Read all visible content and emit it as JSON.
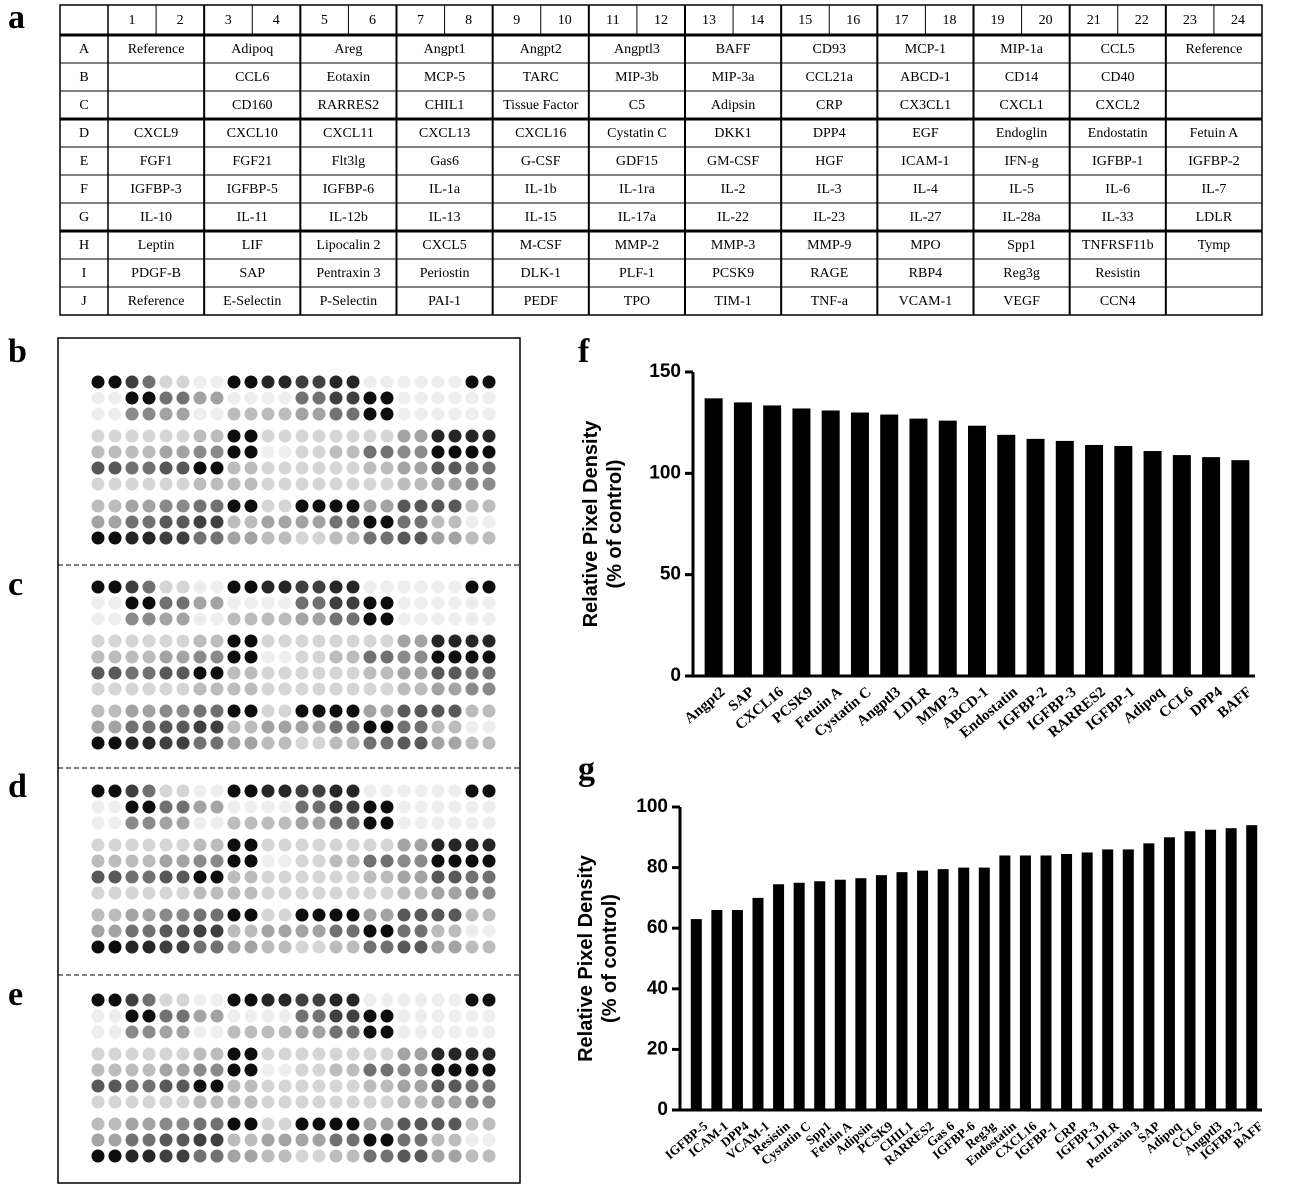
{
  "panel_labels": [
    "a",
    "b",
    "c",
    "d",
    "e",
    "f",
    "g"
  ],
  "table": {
    "columns": [
      1,
      2,
      3,
      4,
      5,
      6,
      7,
      8,
      9,
      10,
      11,
      12,
      13,
      14,
      15,
      16,
      17,
      18,
      19,
      20,
      21,
      22,
      23,
      24
    ],
    "row_labels": [
      "A",
      "B",
      "C",
      "D",
      "E",
      "F",
      "G",
      "H",
      "I",
      "J"
    ],
    "rows": [
      [
        "Reference",
        "Adipoq",
        "Areg",
        "Angpt1",
        "Angpt2",
        "Angptl3",
        "BAFF",
        "CD93",
        "MCP-1",
        "MIP-1a",
        "CCL5",
        "Reference"
      ],
      [
        null,
        "CCL6",
        "Eotaxin",
        "MCP-5",
        "TARC",
        "MIP-3b",
        "MIP-3a",
        "CCL21a",
        "ABCD-1",
        "CD14",
        "CD40",
        null
      ],
      [
        null,
        "CD160",
        "RARRES2",
        "CHIL1",
        "Tissue Factor",
        "C5",
        "Adipsin",
        "CRP",
        "CX3CL1",
        "CXCL1",
        "CXCL2",
        null
      ],
      [
        "CXCL9",
        "CXCL10",
        "CXCL11",
        "CXCL13",
        "CXCL16",
        "Cystatin C",
        "DKK1",
        "DPP4",
        "EGF",
        "Endoglin",
        "Endostatin",
        "Fetuin A"
      ],
      [
        "FGF1",
        "FGF21",
        "Flt3lg",
        "Gas6",
        "G-CSF",
        "GDF15",
        "GM-CSF",
        "HGF",
        "ICAM-1",
        "IFN-g",
        "IGFBP-1",
        "IGFBP-2"
      ],
      [
        "IGFBP-3",
        "IGFBP-5",
        "IGFBP-6",
        "IL-1a",
        "IL-1b",
        "IL-1ra",
        "IL-2",
        "IL-3",
        "IL-4",
        "IL-5",
        "IL-6",
        "IL-7"
      ],
      [
        "IL-10",
        "IL-11",
        "IL-12b",
        "IL-13",
        "IL-15",
        "IL-17a",
        "IL-22",
        "IL-23",
        "IL-27",
        "IL-28a",
        "IL-33",
        "LDLR"
      ],
      [
        "Leptin",
        "LIF",
        "Lipocalin 2",
        "CXCL5",
        "M-CSF",
        "MMP-2",
        "MMP-3",
        "MMP-9",
        "MPO",
        "Spp1",
        "TNFRSF11b",
        "Tymp"
      ],
      [
        "PDGF-B",
        "SAP",
        "Pentraxin 3",
        "Periostin",
        "DLK-1",
        "PLF-1",
        "PCSK9",
        "RAGE",
        "RBP4",
        "Reg3g",
        "Resistin",
        null
      ],
      [
        "Reference",
        "E-Selectin",
        "P-Selectin",
        "PAI-1",
        "PEDF",
        "TPO",
        "TIM-1",
        "TNF-a",
        "VCAM-1",
        "VEGF",
        "CCN4",
        null
      ]
    ]
  },
  "chart_data": [
    {
      "type": "bar",
      "ylabel": [
        "Relative Pixel Density",
        "(% of control)"
      ],
      "color": "#000000",
      "categories": [
        "Angpt2",
        "SAP",
        "CXCL16",
        "PCSK9",
        "Fetuin A",
        "Cystatin C",
        "Angptl3",
        "LDLR",
        "MMP-3",
        "ABCD-1",
        "Endostatin",
        "IGFBP-2",
        "IGFBP-3",
        "RARRES2",
        "IGFBP-1",
        "Adipoq",
        "CCL6",
        "DPP4",
        "BAFF"
      ],
      "values": [
        137,
        135,
        133.5,
        132,
        131,
        130,
        129,
        127,
        126,
        123.5,
        119,
        117,
        116,
        114,
        113.5,
        111,
        109,
        108,
        106.5
      ],
      "ylim": [
        0,
        150
      ],
      "yticks": [
        0,
        50,
        100,
        150
      ]
    },
    {
      "type": "bar",
      "ylabel": [
        "Relative Pixel Density",
        "(% of control)"
      ],
      "color": "#000000",
      "categories": [
        "IGFBP-5",
        "ICAM-1",
        "DPP4",
        "VCAM-1",
        "Resistin",
        "Cystatin C",
        "Spp1",
        "Fetuin A",
        "Adipsin",
        "PCSK9",
        "CHIL1",
        "RARRES2",
        "Gas 6",
        "IGFBP-6",
        "Reg3g",
        "Endostatin",
        "CXCL16",
        "IGFBP-1",
        "CRP",
        "IGFBP-3",
        "LDLR",
        "Pentraxin 3",
        "SAP",
        "Adipoq",
        "CCL6",
        "Angptl3",
        "IGFBP-2",
        "BAFF"
      ],
      "values": [
        63,
        66,
        66,
        70,
        74.5,
        75,
        75.5,
        76,
        76.5,
        77.5,
        78.5,
        79,
        79.5,
        80,
        80,
        84,
        84,
        84,
        84.5,
        85,
        86,
        86,
        88,
        90,
        92,
        92.5,
        93,
        94
      ],
      "ylim": [
        0,
        100
      ],
      "yticks": [
        0,
        20,
        40,
        60,
        80,
        100
      ]
    }
  ]
}
